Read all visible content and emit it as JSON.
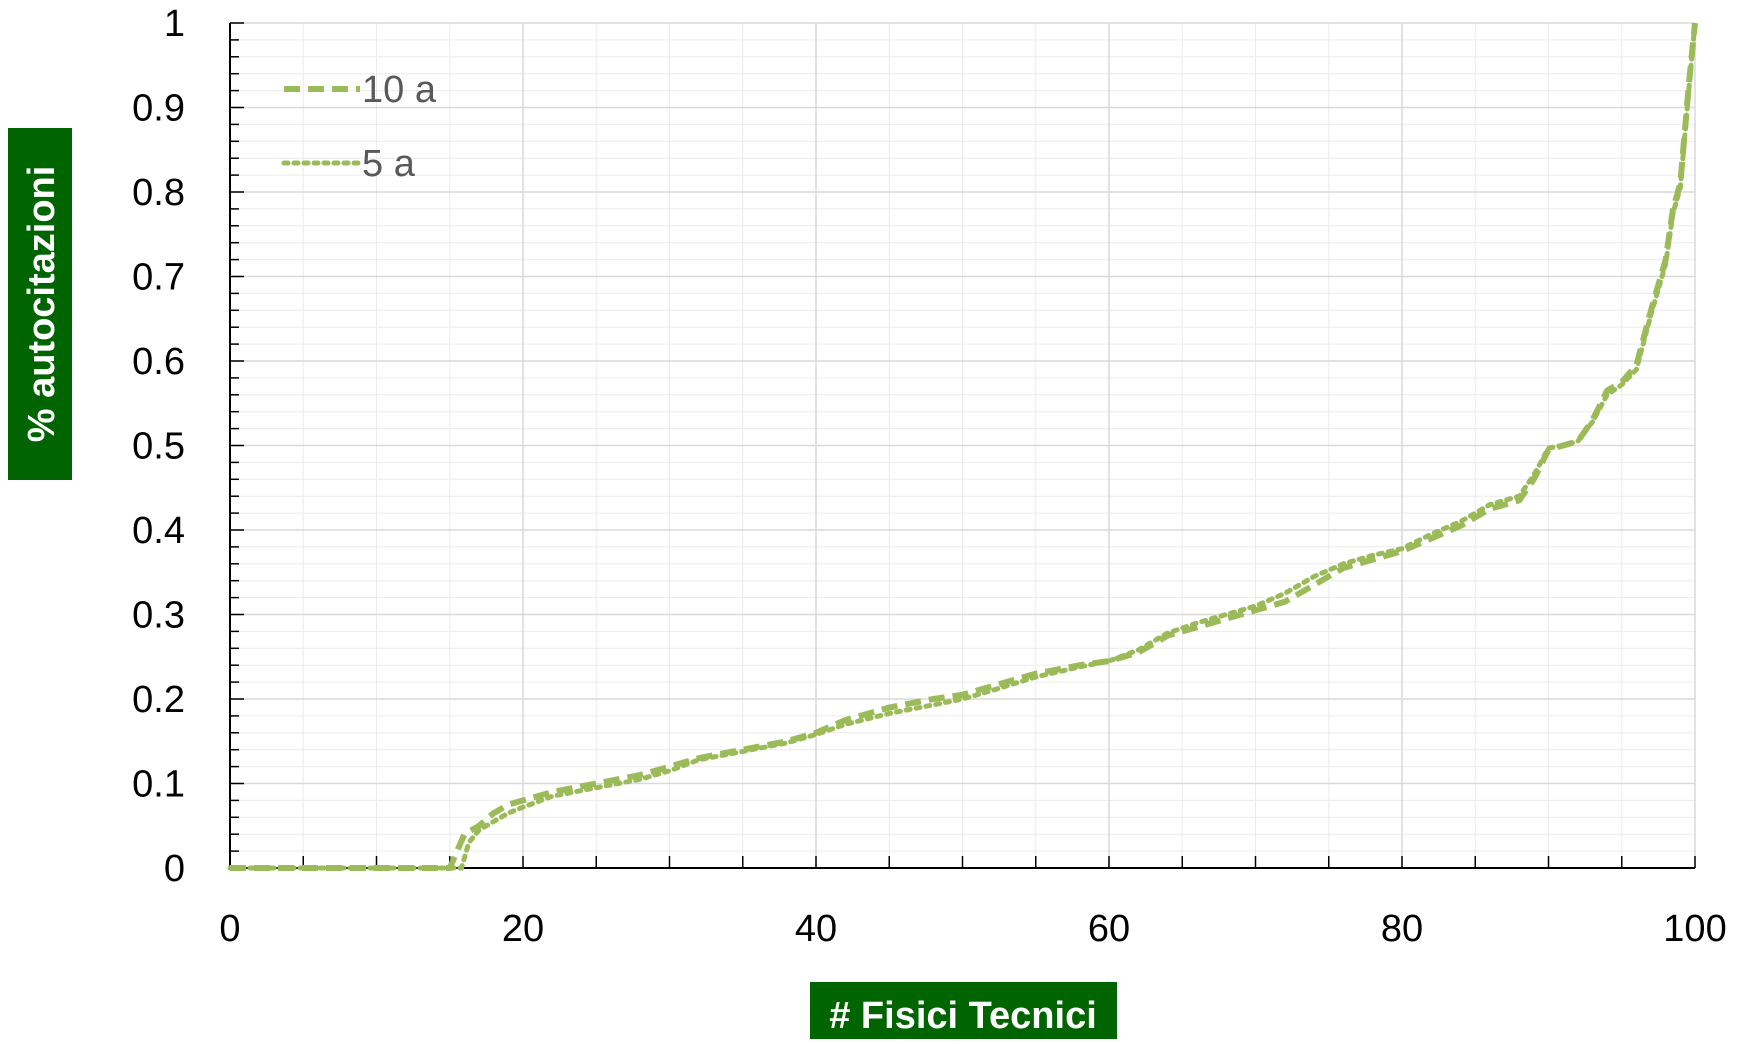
{
  "chart_data": {
    "type": "line",
    "title": "",
    "xlabel": "# Fisici Tecnici",
    "ylabel": "% autocitazioni",
    "xlim": [
      0,
      100
    ],
    "ylim": [
      0,
      1
    ],
    "x_ticks": [
      0,
      20,
      40,
      60,
      80,
      100
    ],
    "y_ticks": [
      0,
      0.1,
      0.2,
      0.3,
      0.4,
      0.5,
      0.6,
      0.7,
      0.8,
      0.9,
      1
    ],
    "x_tick_labels": [
      "0",
      "20",
      "40",
      "60",
      "80",
      "100"
    ],
    "y_tick_labels": [
      "0",
      "0.1",
      "0.2",
      "0.3",
      "0.4",
      "0.5",
      "0.6",
      "0.7",
      "0.8",
      "0.9",
      "1"
    ],
    "grid": true,
    "legend_position": "top-left",
    "axis_label_background": "#006400",
    "series": [
      {
        "name": "10 a",
        "style": "dashed",
        "color": "#9BBB59",
        "x": [
          0,
          15.0,
          15.5,
          16,
          17,
          18,
          19,
          20,
          22,
          25,
          28,
          30,
          32,
          35,
          38,
          40,
          42,
          45,
          48,
          50,
          52,
          55,
          58,
          60,
          62,
          64,
          66,
          68,
          70,
          72,
          74,
          76,
          78,
          80,
          82,
          84,
          86,
          88,
          89,
          90,
          91,
          92,
          93,
          94,
          95,
          96,
          97,
          98,
          98.5,
          99,
          99.3,
          99.6,
          100
        ],
        "y": [
          0,
          0,
          0.02,
          0.04,
          0.05,
          0.065,
          0.075,
          0.08,
          0.09,
          0.1,
          0.11,
          0.12,
          0.13,
          0.14,
          0.15,
          0.16,
          0.175,
          0.19,
          0.2,
          0.205,
          0.215,
          0.23,
          0.24,
          0.245,
          0.255,
          0.275,
          0.285,
          0.295,
          0.305,
          0.315,
          0.335,
          0.355,
          0.365,
          0.375,
          0.39,
          0.405,
          0.425,
          0.435,
          0.46,
          0.495,
          0.5,
          0.505,
          0.53,
          0.565,
          0.575,
          0.595,
          0.66,
          0.72,
          0.78,
          0.81,
          0.87,
          0.93,
          1.0
        ]
      },
      {
        "name": "5 a",
        "style": "dotted",
        "color": "#9BBB59",
        "x": [
          0,
          15.8,
          16.3,
          17,
          18,
          19,
          20,
          22,
          25,
          28,
          30,
          32,
          35,
          38,
          40,
          42,
          45,
          48,
          50,
          52,
          55,
          58,
          60,
          62,
          64,
          66,
          68,
          70,
          72,
          74,
          76,
          78,
          80,
          82,
          84,
          86,
          88,
          89,
          90,
          91,
          92,
          93,
          94,
          95,
          96,
          97,
          98,
          98.5,
          99,
          99.3,
          99.6,
          100
        ],
        "y": [
          0,
          0,
          0.03,
          0.045,
          0.055,
          0.065,
          0.072,
          0.085,
          0.095,
          0.105,
          0.115,
          0.128,
          0.138,
          0.148,
          0.158,
          0.17,
          0.183,
          0.193,
          0.2,
          0.21,
          0.226,
          0.238,
          0.245,
          0.258,
          0.278,
          0.29,
          0.3,
          0.31,
          0.325,
          0.345,
          0.36,
          0.37,
          0.378,
          0.395,
          0.41,
          0.43,
          0.44,
          0.465,
          0.497,
          0.5,
          0.505,
          0.528,
          0.56,
          0.572,
          0.59,
          0.655,
          0.715,
          0.775,
          0.805,
          0.865,
          0.925,
          1.0
        ]
      }
    ]
  }
}
